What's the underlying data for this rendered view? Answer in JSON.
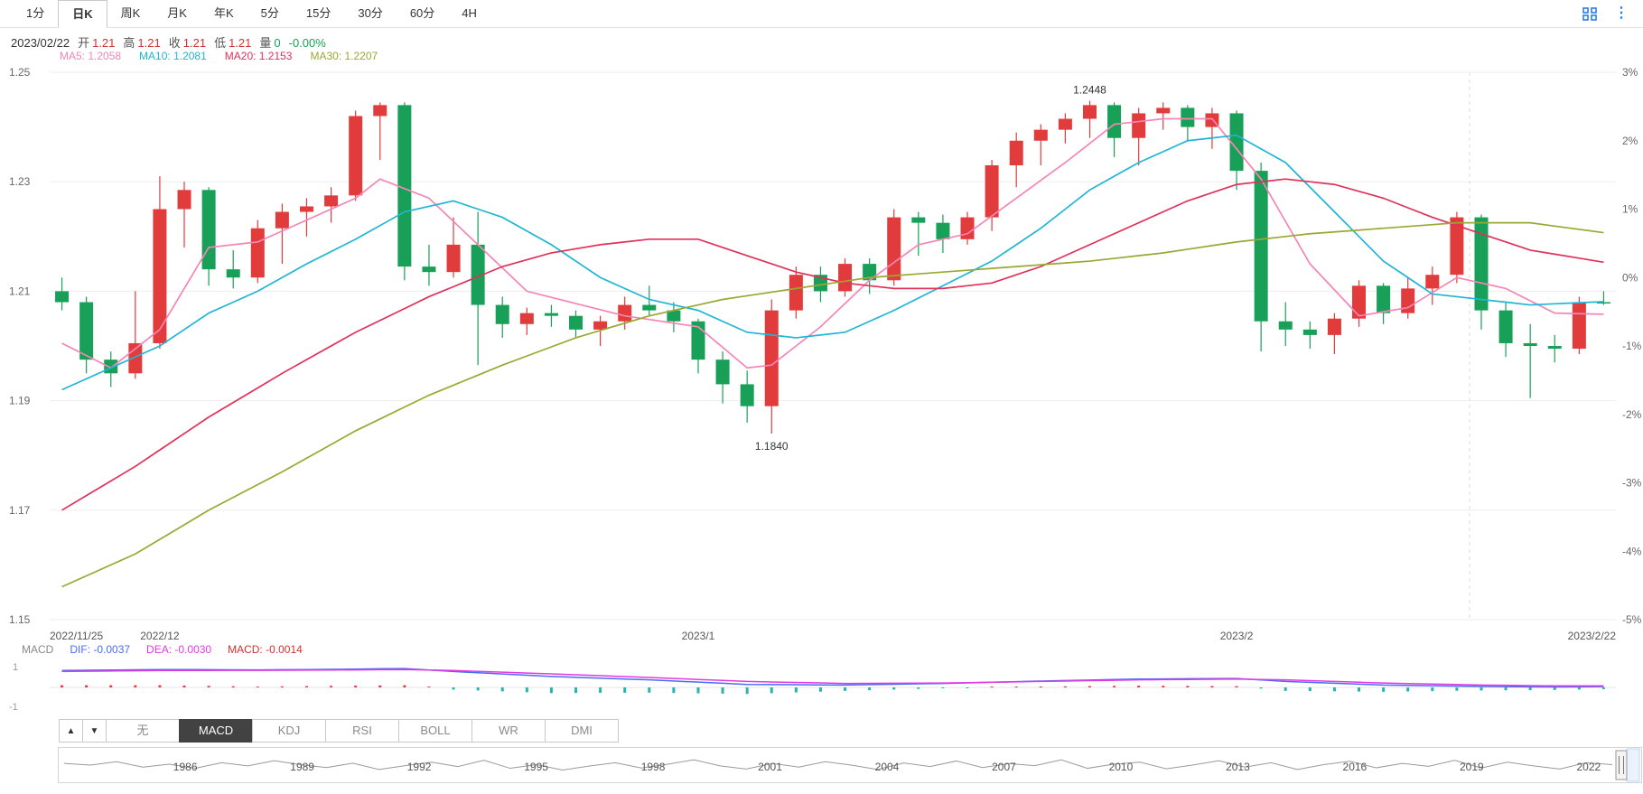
{
  "header": {
    "tabs": [
      {
        "label": "1分",
        "active": false
      },
      {
        "label": "日K",
        "active": true
      },
      {
        "label": "周K",
        "active": false
      },
      {
        "label": "月K",
        "active": false
      },
      {
        "label": "年K",
        "active": false
      },
      {
        "label": "5分",
        "active": false
      },
      {
        "label": "15分",
        "active": false
      },
      {
        "label": "30分",
        "active": false
      },
      {
        "label": "60分",
        "active": false
      },
      {
        "label": "4H",
        "active": false
      }
    ],
    "icon_color": "#2b7de9"
  },
  "info_bar": {
    "date": "2023/02/22",
    "fields": [
      {
        "label": "开",
        "value": "1.21",
        "color": "#d3322e"
      },
      {
        "label": "高",
        "value": "1.21",
        "color": "#d3322e"
      },
      {
        "label": "收",
        "value": "1.21",
        "color": "#d3322e"
      },
      {
        "label": "低",
        "value": "1.21",
        "color": "#d3322e"
      },
      {
        "label": "量",
        "value": "0",
        "color": "#18a058"
      }
    ],
    "change": "-0.00%",
    "change_color": "#18a058"
  },
  "ma_legend": [
    {
      "label": "MA5: 1.2058",
      "color": "#f585b5"
    },
    {
      "label": "MA10: 1.2081",
      "color": "#1fb5d5"
    },
    {
      "label": "MA20: 1.2153",
      "color": "#e0315a"
    },
    {
      "label": "MA30: 1.2207",
      "color": "#9aa832"
    }
  ],
  "chart_data": {
    "type": "candlestick",
    "price_range": [
      1.15,
      1.25
    ],
    "y_axis_left": [
      "1.25",
      "1.23",
      "1.21",
      "1.19",
      "1.17",
      "1.15"
    ],
    "y_axis_right": [
      "3%",
      "2%",
      "1%",
      "0%",
      "-1%",
      "-2%",
      "-3%",
      "-4%",
      "-5%"
    ],
    "x_axis_labels": [
      {
        "index": 0,
        "label": "2022/11/25",
        "align": "start"
      },
      {
        "index": 4,
        "label": "2022/12",
        "align": "middle"
      },
      {
        "index": 26,
        "label": "2023/1",
        "align": "middle"
      },
      {
        "index": 48,
        "label": "2023/2",
        "align": "middle"
      },
      {
        "index": 63,
        "label": "2023/2/22",
        "align": "end"
      }
    ],
    "annotations": {
      "high_label": "1.2448",
      "low_label": "1.1840"
    },
    "colors": {
      "up": "#e23b3b",
      "down": "#18a058",
      "grid": "#ededed",
      "axis_text": "#666"
    },
    "candle_format": [
      "date",
      "open",
      "high",
      "low",
      "close"
    ],
    "candles": [
      [
        "2022/11/25",
        1.21,
        1.2125,
        1.2065,
        1.208
      ],
      [
        "2022/11/28",
        1.208,
        1.209,
        1.195,
        1.1975
      ],
      [
        "2022/11/29",
        1.1975,
        1.199,
        1.1925,
        1.195
      ],
      [
        "2022/11/30",
        1.195,
        1.21,
        1.194,
        1.2005
      ],
      [
        "2022/12/1",
        1.2005,
        1.231,
        1.1995,
        1.225
      ],
      [
        "2022/12/2",
        1.225,
        1.23,
        1.218,
        1.2285
      ],
      [
        "2022/12/5",
        1.2285,
        1.229,
        1.211,
        1.214
      ],
      [
        "2022/12/6",
        1.214,
        1.2175,
        1.2105,
        1.2125
      ],
      [
        "2022/12/7",
        1.2125,
        1.223,
        1.2115,
        1.2215
      ],
      [
        "2022/12/8",
        1.2215,
        1.226,
        1.215,
        1.2245
      ],
      [
        "2022/12/9",
        1.2245,
        1.227,
        1.22,
        1.2255
      ],
      [
        "2022/12/12",
        1.2255,
        1.229,
        1.2225,
        1.2275
      ],
      [
        "2022/12/13",
        1.2275,
        1.243,
        1.2265,
        1.242
      ],
      [
        "2022/12/14",
        1.242,
        1.2445,
        1.234,
        1.244
      ],
      [
        "2022/12/15",
        1.244,
        1.2445,
        1.212,
        1.2145
      ],
      [
        "2022/12/16",
        1.2145,
        1.2185,
        1.211,
        1.2135
      ],
      [
        "2022/12/19",
        1.2135,
        1.2235,
        1.2125,
        1.2185
      ],
      [
        "2022/12/20",
        1.2185,
        1.2245,
        1.1965,
        1.2075
      ],
      [
        "2022/12/21",
        1.2075,
        1.209,
        1.2015,
        1.204
      ],
      [
        "2022/12/22",
        1.204,
        1.207,
        1.202,
        1.206
      ],
      [
        "2022/12/23",
        1.206,
        1.2075,
        1.2035,
        1.2055
      ],
      [
        "2022/12/26",
        1.2055,
        1.2065,
        1.2015,
        1.203
      ],
      [
        "2022/12/27",
        1.203,
        1.2055,
        1.2,
        1.2045
      ],
      [
        "2022/12/28",
        1.2045,
        1.209,
        1.203,
        1.2075
      ],
      [
        "2022/12/29",
        1.2075,
        1.211,
        1.2055,
        1.2065
      ],
      [
        "2022/12/30",
        1.2065,
        1.208,
        1.2025,
        1.2045
      ],
      [
        "2023/1/2",
        1.2045,
        1.205,
        1.195,
        1.1975
      ],
      [
        "2023/1/3",
        1.1975,
        1.199,
        1.1895,
        1.193
      ],
      [
        "2023/1/4",
        1.193,
        1.1955,
        1.186,
        1.189
      ],
      [
        "2023/1/5",
        1.189,
        1.2085,
        1.184,
        1.2065
      ],
      [
        "2023/1/6",
        1.2065,
        1.2145,
        1.205,
        1.213
      ],
      [
        "2023/1/9",
        1.213,
        1.2145,
        1.208,
        1.21
      ],
      [
        "2023/1/10",
        1.21,
        1.216,
        1.209,
        1.215
      ],
      [
        "2023/1/11",
        1.215,
        1.216,
        1.2095,
        1.212
      ],
      [
        "2023/1/12",
        1.212,
        1.225,
        1.211,
        1.2235
      ],
      [
        "2023/1/13",
        1.2235,
        1.2245,
        1.2165,
        1.2225
      ],
      [
        "2023/1/16",
        1.2225,
        1.224,
        1.217,
        1.2195
      ],
      [
        "2023/1/17",
        1.2195,
        1.2245,
        1.2185,
        1.2235
      ],
      [
        "2023/1/18",
        1.2235,
        1.234,
        1.221,
        1.233
      ],
      [
        "2023/1/19",
        1.233,
        1.239,
        1.229,
        1.2375
      ],
      [
        "2023/1/20",
        1.2375,
        1.2405,
        1.233,
        1.2395
      ],
      [
        "2023/1/23",
        1.2395,
        1.2425,
        1.237,
        1.2415
      ],
      [
        "2023/1/24",
        1.2415,
        1.2448,
        1.238,
        1.244
      ],
      [
        "2023/1/25",
        1.244,
        1.2445,
        1.2345,
        1.238
      ],
      [
        "2023/1/26",
        1.238,
        1.2435,
        1.233,
        1.2425
      ],
      [
        "2023/1/27",
        1.2425,
        1.2445,
        1.2395,
        1.2435
      ],
      [
        "2023/1/30",
        1.2435,
        1.244,
        1.2375,
        1.24
      ],
      [
        "2023/1/31",
        1.24,
        1.2435,
        1.236,
        1.2425
      ],
      [
        "2023/2/1",
        1.2425,
        1.243,
        1.2285,
        1.232
      ],
      [
        "2023/2/2",
        1.232,
        1.2335,
        1.199,
        1.2045
      ],
      [
        "2023/2/3",
        1.2045,
        1.208,
        1.2,
        1.203
      ],
      [
        "2023/2/6",
        1.203,
        1.2045,
        1.1995,
        1.202
      ],
      [
        "2023/2/7",
        1.202,
        1.206,
        1.1985,
        1.205
      ],
      [
        "2023/2/8",
        1.205,
        1.212,
        1.2035,
        1.211
      ],
      [
        "2023/2/9",
        1.211,
        1.2115,
        1.204,
        1.206
      ],
      [
        "2023/2/10",
        1.206,
        1.2125,
        1.205,
        1.2105
      ],
      [
        "2023/2/13",
        1.2105,
        1.2145,
        1.2075,
        1.213
      ],
      [
        "2023/2/14",
        1.213,
        1.2245,
        1.2115,
        1.2235
      ],
      [
        "2023/2/15",
        1.2235,
        1.224,
        1.203,
        1.2065
      ],
      [
        "2023/2/16",
        1.2065,
        1.208,
        1.198,
        1.2005
      ],
      [
        "2023/2/17",
        1.2005,
        1.204,
        1.1905,
        1.2
      ],
      [
        "2023/2/20",
        1.2,
        1.202,
        1.197,
        1.1995
      ],
      [
        "2023/2/21",
        1.1995,
        1.209,
        1.1985,
        1.208
      ],
      [
        "2023/2/22",
        1.208,
        1.21,
        1.2075,
        1.208
      ]
    ],
    "ma_series": [
      {
        "name": "MA5",
        "color": "#f585b5",
        "points": [
          [
            0,
            1.2005
          ],
          [
            2,
            1.196
          ],
          [
            4,
            1.203
          ],
          [
            6,
            1.218
          ],
          [
            8,
            1.219
          ],
          [
            12,
            1.227
          ],
          [
            13,
            1.2305
          ],
          [
            15,
            1.227
          ],
          [
            17,
            1.2185
          ],
          [
            19,
            1.21
          ],
          [
            23,
            1.2055
          ],
          [
            26,
            1.2035
          ],
          [
            28,
            1.196
          ],
          [
            29,
            1.1965
          ],
          [
            31,
            1.2035
          ],
          [
            33,
            1.212
          ],
          [
            35,
            1.2185
          ],
          [
            37,
            1.2205
          ],
          [
            39,
            1.227
          ],
          [
            41,
            1.2335
          ],
          [
            43,
            1.2405
          ],
          [
            45,
            1.2415
          ],
          [
            47,
            1.2415
          ],
          [
            49,
            1.2305
          ],
          [
            51,
            1.215
          ],
          [
            53,
            1.2055
          ],
          [
            55,
            1.207
          ],
          [
            57,
            1.2125
          ],
          [
            59,
            1.2105
          ],
          [
            61,
            1.206
          ],
          [
            63,
            1.2058
          ]
        ]
      },
      {
        "name": "MA10",
        "color": "#1fb5d5",
        "points": [
          [
            0,
            1.192
          ],
          [
            2,
            1.196
          ],
          [
            4,
            1.2
          ],
          [
            6,
            1.206
          ],
          [
            8,
            1.21
          ],
          [
            10,
            1.215
          ],
          [
            12,
            1.2195
          ],
          [
            14,
            1.2245
          ],
          [
            16,
            1.2265
          ],
          [
            18,
            1.2235
          ],
          [
            20,
            1.2185
          ],
          [
            22,
            1.2125
          ],
          [
            24,
            1.2085
          ],
          [
            26,
            1.2065
          ],
          [
            28,
            1.2025
          ],
          [
            30,
            1.2015
          ],
          [
            32,
            1.2025
          ],
          [
            34,
            1.2065
          ],
          [
            36,
            1.211
          ],
          [
            38,
            1.2155
          ],
          [
            40,
            1.2215
          ],
          [
            42,
            1.2285
          ],
          [
            44,
            1.2335
          ],
          [
            46,
            1.2375
          ],
          [
            48,
            1.2385
          ],
          [
            50,
            1.2335
          ],
          [
            52,
            1.2245
          ],
          [
            54,
            1.2155
          ],
          [
            56,
            1.2095
          ],
          [
            58,
            1.2085
          ],
          [
            60,
            1.2075
          ],
          [
            63,
            1.2081
          ]
        ]
      },
      {
        "name": "MA20",
        "color": "#e0315a",
        "points": [
          [
            0,
            1.17
          ],
          [
            3,
            1.178
          ],
          [
            6,
            1.187
          ],
          [
            9,
            1.195
          ],
          [
            12,
            1.2025
          ],
          [
            15,
            1.209
          ],
          [
            18,
            1.2145
          ],
          [
            20,
            1.217
          ],
          [
            22,
            1.2185
          ],
          [
            24,
            1.2195
          ],
          [
            26,
            1.2195
          ],
          [
            28,
            1.2165
          ],
          [
            30,
            1.2135
          ],
          [
            32,
            1.2115
          ],
          [
            34,
            1.2105
          ],
          [
            36,
            1.2105
          ],
          [
            38,
            1.2115
          ],
          [
            40,
            1.2145
          ],
          [
            42,
            1.2185
          ],
          [
            44,
            1.2225
          ],
          [
            46,
            1.2265
          ],
          [
            48,
            1.2295
          ],
          [
            50,
            1.2305
          ],
          [
            52,
            1.2295
          ],
          [
            54,
            1.227
          ],
          [
            56,
            1.2235
          ],
          [
            58,
            1.2205
          ],
          [
            60,
            1.2175
          ],
          [
            63,
            1.2153
          ]
        ]
      },
      {
        "name": "MA30",
        "color": "#9aa832",
        "points": [
          [
            0,
            1.156
          ],
          [
            3,
            1.162
          ],
          [
            6,
            1.17
          ],
          [
            9,
            1.177
          ],
          [
            12,
            1.1845
          ],
          [
            15,
            1.191
          ],
          [
            18,
            1.1965
          ],
          [
            21,
            1.2015
          ],
          [
            24,
            1.2055
          ],
          [
            27,
            1.2085
          ],
          [
            30,
            1.2105
          ],
          [
            33,
            1.2125
          ],
          [
            36,
            1.2135
          ],
          [
            39,
            1.2145
          ],
          [
            42,
            1.2155
          ],
          [
            45,
            1.217
          ],
          [
            48,
            1.219
          ],
          [
            51,
            1.2205
          ],
          [
            54,
            1.2215
          ],
          [
            57,
            1.2225
          ],
          [
            60,
            1.2225
          ],
          [
            63,
            1.2207
          ]
        ]
      }
    ]
  },
  "macd_chart": {
    "title": "MACD",
    "legend": [
      {
        "label": "DIF: -0.0037",
        "color": "#4a6cf0"
      },
      {
        "label": "DEA: -0.0030",
        "color": "#e23ae2"
      },
      {
        "label": "MACD: -0.0014",
        "color": "#d3322e"
      }
    ],
    "y_axis": [
      "1",
      "-1"
    ],
    "colors": {
      "dif": "#4a6cf0",
      "dea": "#e23ae2",
      "hist_pos": "#e23b3b",
      "hist_neg": "#2ab3ae",
      "zero": "#e5e5e5"
    },
    "dif_points": [
      [
        0,
        0.85
      ],
      [
        4,
        0.9
      ],
      [
        8,
        0.88
      ],
      [
        12,
        0.92
      ],
      [
        14,
        0.95
      ],
      [
        16,
        0.8
      ],
      [
        20,
        0.55
      ],
      [
        24,
        0.38
      ],
      [
        28,
        0.15
      ],
      [
        32,
        0.12
      ],
      [
        36,
        0.2
      ],
      [
        40,
        0.32
      ],
      [
        44,
        0.42
      ],
      [
        48,
        0.45
      ],
      [
        50,
        0.3
      ],
      [
        54,
        0.12
      ],
      [
        58,
        0.05
      ],
      [
        61,
        0.02
      ],
      [
        63,
        0.04
      ]
    ],
    "dea_points": [
      [
        0,
        0.8
      ],
      [
        4,
        0.85
      ],
      [
        8,
        0.86
      ],
      [
        12,
        0.88
      ],
      [
        14,
        0.9
      ],
      [
        16,
        0.85
      ],
      [
        20,
        0.68
      ],
      [
        24,
        0.5
      ],
      [
        28,
        0.3
      ],
      [
        32,
        0.2
      ],
      [
        36,
        0.22
      ],
      [
        40,
        0.3
      ],
      [
        44,
        0.38
      ],
      [
        48,
        0.42
      ],
      [
        50,
        0.38
      ],
      [
        54,
        0.22
      ],
      [
        58,
        0.12
      ],
      [
        61,
        0.08
      ],
      [
        63,
        0.08
      ]
    ]
  },
  "indicator_bar": {
    "buttons": [
      "▲",
      "▼"
    ],
    "tabs": [
      {
        "label": "无",
        "active": false
      },
      {
        "label": "MACD",
        "active": true
      },
      {
        "label": "KDJ",
        "active": false
      },
      {
        "label": "RSI",
        "active": false
      },
      {
        "label": "BOLL",
        "active": false
      },
      {
        "label": "WR",
        "active": false
      },
      {
        "label": "DMI",
        "active": false
      }
    ]
  },
  "navigator": {
    "years": [
      "1986",
      "1989",
      "1992",
      "1995",
      "1998",
      "2001",
      "2004",
      "2007",
      "2010",
      "2013",
      "2016",
      "2019",
      "2022"
    ],
    "line_color": "#9a9a9a",
    "series": [
      0.55,
      0.48,
      0.62,
      0.4,
      0.52,
      0.35,
      0.58,
      0.45,
      0.66,
      0.5,
      0.38,
      0.56,
      0.3,
      0.46,
      0.6,
      0.42,
      0.68,
      0.35,
      0.5,
      0.28,
      0.44,
      0.58,
      0.36,
      0.52,
      0.7,
      0.45,
      0.32,
      0.55,
      0.4,
      0.62,
      0.48,
      0.3,
      0.57,
      0.42,
      0.65,
      0.38,
      0.54,
      0.46,
      0.7,
      0.35,
      0.52,
      0.6,
      0.33,
      0.48,
      0.66,
      0.4,
      0.58,
      0.3,
      0.5,
      0.64,
      0.37,
      0.55,
      0.43,
      0.68,
      0.36,
      0.6,
      0.45,
      0.32,
      0.58,
      0.5
    ]
  }
}
